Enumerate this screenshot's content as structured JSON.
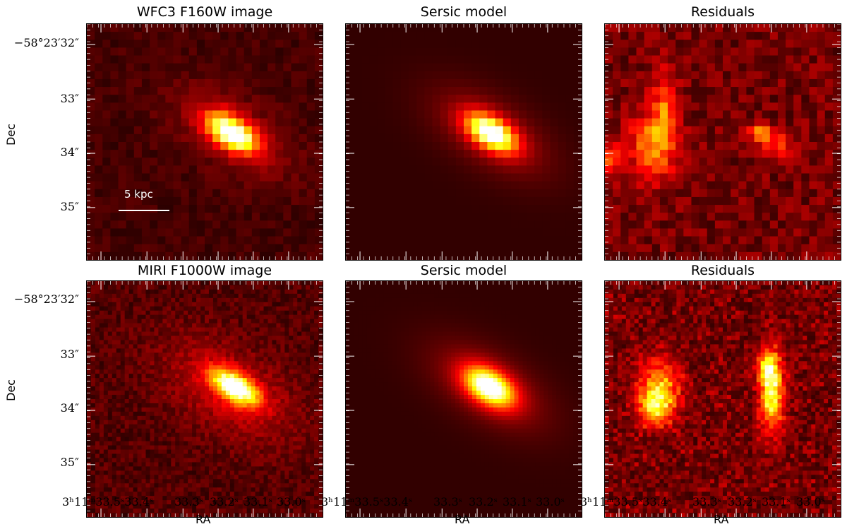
{
  "panels": [
    {
      "row": 0,
      "col": 0,
      "title": "WFC3 F160W image",
      "kind": "data",
      "name": "wfc3-image"
    },
    {
      "row": 0,
      "col": 1,
      "title": "Sersic model",
      "kind": "model",
      "name": "wfc3-model"
    },
    {
      "row": 0,
      "col": 2,
      "title": "Residuals",
      "kind": "resid",
      "name": "wfc3-residuals"
    },
    {
      "row": 1,
      "col": 0,
      "title": "MIRI F1000W image",
      "kind": "data",
      "name": "miri-image"
    },
    {
      "row": 1,
      "col": 1,
      "title": "Sersic model",
      "kind": "model",
      "name": "miri-model"
    },
    {
      "row": 1,
      "col": 2,
      "title": "Residuals",
      "kind": "resid",
      "name": "miri-residuals"
    }
  ],
  "yticks": [
    "−58°23′32″",
    "33″",
    "34″",
    "35″"
  ],
  "xticks": [
    "3ʰ11ᵐ33.5ˢ",
    "33.4ˢ",
    "33.3ˢ",
    "33.2ˢ",
    "33.1ˢ",
    "33.0ˢ"
  ],
  "xtick_label_first_col": "3ʰ11ᵐ33.5ˢ33.4ˢ",
  "ylabel": "Dec",
  "xlabel": "RA",
  "scalebar": "5 kpc",
  "colormap": "hot"
}
